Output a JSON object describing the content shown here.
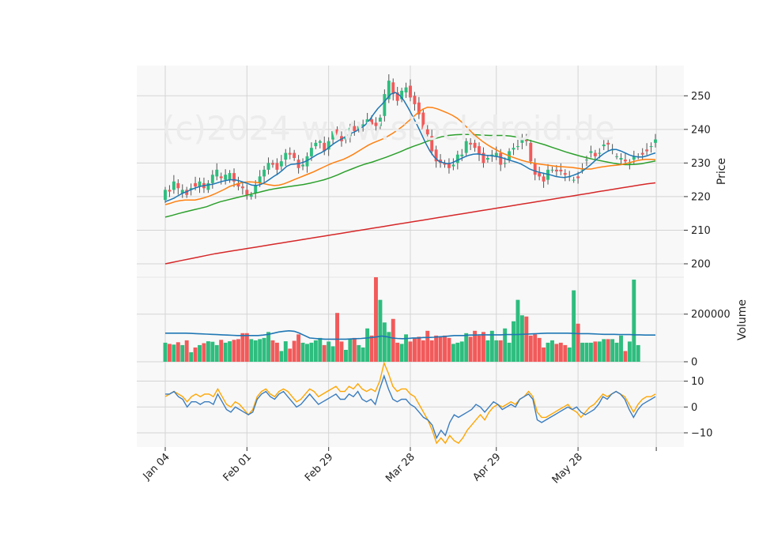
{
  "watermark": "(c)2024 www.stockdroid.de",
  "colors": {
    "up": "#2ebd7e",
    "down": "#f25a5a",
    "panel_bg": "#f8f8f8",
    "grid": "#d4d4d4",
    "ma_fast": "#1f77b4",
    "ma_mid": "#ff7f0e",
    "ma_slow": "#2ca02c",
    "ma_long": "#d62728",
    "vol_ma": "#1f77b4",
    "osc_a": "#3b7dbf",
    "osc_b": "#ffa500"
  },
  "chart_data": [
    {
      "type": "candlestick",
      "panel": "price",
      "ylabel": "Price",
      "ylim": [
        196,
        259
      ],
      "yticks": [
        200,
        210,
        220,
        230,
        240,
        250
      ],
      "x_tick_labels": [
        "Jan 04",
        "Feb 01",
        "Feb 29",
        "Mar 28",
        "Apr 29",
        "May 28"
      ],
      "x_tick_indices": [
        0,
        19,
        38,
        57,
        77,
        96
      ],
      "n_bars": 115,
      "close": [
        222.0,
        221.5,
        224.5,
        222.5,
        222.0,
        220.5,
        222.5,
        223.0,
        224.5,
        222.5,
        224.0,
        226.5,
        228.0,
        225.5,
        226.5,
        227.0,
        224.5,
        223.0,
        222.5,
        220.5,
        220.5,
        223.5,
        226.0,
        228.0,
        230.0,
        229.5,
        228.0,
        230.5,
        233.0,
        232.5,
        231.5,
        228.5,
        229.5,
        232.0,
        234.5,
        236.0,
        236.5,
        233.5,
        236.5,
        239.5,
        238.0,
        236.5,
        238.0,
        240.5,
        239.5,
        241.0,
        241.5,
        243.0,
        241.5,
        241.0,
        243.5,
        250.5,
        254.5,
        250.5,
        248.5,
        251.5,
        252.5,
        249.5,
        247.5,
        244.5,
        240.0,
        238.5,
        233.5,
        230.5,
        230.0,
        229.5,
        228.5,
        229.5,
        232.5,
        232.5,
        236.5,
        235.5,
        234.5,
        232.5,
        230.0,
        231.5,
        232.5,
        233.0,
        229.5,
        230.0,
        233.5,
        234.5,
        235.0,
        237.5,
        236.5,
        230.5,
        226.5,
        226.0,
        224.5,
        228.0,
        228.0,
        227.5,
        227.5,
        226.5,
        226.0,
        225.0,
        225.5,
        228.0,
        231.0,
        233.5,
        232.0,
        233.0,
        235.5,
        235.5,
        234.0,
        232.0,
        231.5,
        230.5,
        230.0,
        232.0,
        232.0,
        232.5,
        233.5,
        235.0,
        237.0
      ],
      "open": [
        219.0,
        222.0,
        222.0,
        224.0,
        221.0,
        222.0,
        222.0,
        224.0,
        223.0,
        224.0,
        222.0,
        224.0,
        226.0,
        226.0,
        225.0,
        225.0,
        227.0,
        224.0,
        223.0,
        222.0,
        220.0,
        221.0,
        224.0,
        226.0,
        228.0,
        230.0,
        230.0,
        229.0,
        231.0,
        233.0,
        233.0,
        231.0,
        229.0,
        229.0,
        232.0,
        235.0,
        236.0,
        236.0,
        234.0,
        237.0,
        240.0,
        238.0,
        237.0,
        238.0,
        241.0,
        240.0,
        241.0,
        242.0,
        243.0,
        242.0,
        241.0,
        244.0,
        249.0,
        254.0,
        251.0,
        249.0,
        251.0,
        253.0,
        250.0,
        248.0,
        245.0,
        240.0,
        238.0,
        234.0,
        231.0,
        230.0,
        230.0,
        229.0,
        230.0,
        232.0,
        233.0,
        236.0,
        236.0,
        235.0,
        233.0,
        231.0,
        232.0,
        232.0,
        233.0,
        230.0,
        231.0,
        234.0,
        235.0,
        236.0,
        237.0,
        236.0,
        230.0,
        227.0,
        226.0,
        225.0,
        228.0,
        228.0,
        228.0,
        227.0,
        226.0,
        225.0,
        226.0,
        228.0,
        231.0,
        233.0,
        233.0,
        233.0,
        235.0,
        236.0,
        234.0,
        232.0,
        231.0,
        231.0,
        230.0,
        231.0,
        232.0,
        233.0,
        234.0,
        235.0,
        236.0
      ],
      "ma_fast": [
        218.5,
        219.0,
        219.5,
        220.3,
        221.0,
        221.5,
        222.1,
        222.6,
        223.0,
        223.3,
        223.5,
        223.7,
        224.1,
        224.5,
        224.8,
        225.0,
        225.0,
        224.7,
        224.3,
        223.9,
        223.4,
        223.3,
        223.6,
        224.2,
        225.1,
        226.0,
        226.8,
        227.8,
        229.0,
        229.6,
        229.7,
        229.9,
        230.3,
        230.9,
        231.7,
        232.5,
        233.1,
        233.9,
        234.9,
        235.9,
        236.7,
        237.4,
        238.2,
        238.9,
        239.5,
        240.3,
        241.2,
        242.6,
        244.5,
        246.2,
        247.5,
        249.0,
        250.5,
        251.0,
        250.2,
        248.6,
        246.4,
        244.0,
        241.5,
        238.8,
        236.0,
        233.6,
        231.8,
        230.6,
        230.1,
        229.8,
        230.0,
        230.6,
        231.2,
        231.8,
        232.3,
        232.6,
        232.7,
        232.5,
        232.3,
        232.2,
        232.0,
        231.8,
        231.4,
        231.0,
        230.6,
        230.2,
        229.7,
        229.0,
        228.2,
        227.7,
        227.3,
        227.0,
        226.7,
        226.4,
        226.0,
        225.8,
        225.7,
        225.9,
        226.3,
        226.8,
        227.4,
        228.4,
        229.4,
        230.6,
        231.7,
        232.7,
        233.5,
        234.0,
        234.0,
        233.6,
        233.0,
        232.4,
        232.0,
        231.8,
        231.8,
        232.1,
        232.6,
        233.0
      ],
      "ma_mid": [
        217.6,
        218.0,
        218.5,
        218.8,
        219.0,
        219.0,
        219.0,
        219.3,
        219.7,
        220.2,
        220.8,
        221.5,
        222.2,
        223.0,
        223.5,
        224.0,
        224.3,
        224.4,
        224.3,
        224.1,
        223.8,
        223.5,
        223.3,
        223.4,
        223.8,
        224.4,
        225.0,
        225.6,
        226.2,
        226.8,
        227.4,
        228.1,
        228.8,
        229.5,
        230.1,
        230.6,
        231.1,
        231.8,
        232.6,
        233.5,
        234.4,
        235.3,
        236.0,
        236.6,
        237.2,
        238.0,
        238.9,
        239.9,
        241.0,
        242.3,
        243.6,
        244.9,
        246.0,
        246.6,
        246.5,
        246.1,
        245.5,
        244.9,
        244.2,
        243.3,
        242.0,
        240.5,
        239.0,
        237.7,
        236.5,
        235.5,
        234.6,
        233.8,
        233.0,
        232.4,
        231.8,
        231.3,
        230.8,
        230.4,
        230.1,
        229.8,
        229.6,
        229.4,
        229.2,
        229.0,
        228.9,
        228.8,
        228.7,
        228.5,
        228.3,
        228.2,
        228.2,
        228.5,
        228.8,
        229.0,
        229.2,
        229.3,
        229.5,
        229.8,
        230.2,
        230.6,
        230.9,
        231.1,
        231.1,
        231.0
      ],
      "ma_slow": [
        213.9,
        214.4,
        215.0,
        215.5,
        216.0,
        216.5,
        217.0,
        217.8,
        218.5,
        219.0,
        219.5,
        220.0,
        220.5,
        221.0,
        221.5,
        222.0,
        222.4,
        222.7,
        223.0,
        223.3,
        223.6,
        224.0,
        224.5,
        225.0,
        225.7,
        226.5,
        227.4,
        228.2,
        229.0,
        229.7,
        230.3,
        231.0,
        231.7,
        232.5,
        233.3,
        234.2,
        235.0,
        235.7,
        236.5,
        237.2,
        237.8,
        238.2,
        238.4,
        238.5,
        238.5,
        238.4,
        238.3,
        238.2,
        238.2,
        238.2,
        238.0,
        237.7,
        237.2,
        236.6,
        236.0,
        235.4,
        234.7,
        234.0,
        233.3,
        232.7,
        232.1,
        231.6,
        231.1,
        230.7,
        230.3,
        229.9,
        229.6,
        229.5,
        229.6,
        229.8,
        230.2,
        230.6
      ],
      "ma_slow_start": 0,
      "ma_long": [
        200.0,
        200.5,
        201.0,
        201.5,
        202.0,
        202.5,
        203.0,
        203.4,
        203.8,
        204.2,
        204.6,
        205.0,
        205.4,
        205.8,
        206.2,
        206.6,
        207.0,
        207.4,
        207.8,
        208.2,
        208.6,
        209.0,
        209.4,
        209.8,
        210.2,
        210.6,
        211.0,
        211.4,
        211.8,
        212.2,
        212.6,
        213.0,
        213.4,
        213.8,
        214.2,
        214.6,
        215.0,
        215.4,
        215.8,
        216.2,
        216.6,
        217.0,
        217.4,
        217.8,
        218.2,
        218.6,
        219.0,
        219.4,
        219.8,
        220.2,
        220.6,
        221.0,
        221.4,
        221.8,
        222.2,
        222.6,
        223.0,
        223.4,
        223.8,
        224.1
      ]
    },
    {
      "type": "bar",
      "panel": "volume",
      "ylabel": "Volume",
      "ylim": [
        0,
        355000
      ],
      "yticks": [
        0,
        200000
      ],
      "values": [
        80000,
        75000,
        72000,
        82000,
        70000,
        90000,
        40000,
        60000,
        70000,
        78000,
        86000,
        84000,
        70000,
        92000,
        80000,
        86000,
        92000,
        95000,
        120000,
        120000,
        95000,
        90000,
        95000,
        100000,
        125000,
        90000,
        80000,
        45000,
        86000,
        55000,
        88000,
        115000,
        80000,
        75000,
        80000,
        90000,
        100000,
        70000,
        85000,
        65000,
        205000,
        85000,
        50000,
        95000,
        100000,
        70000,
        60000,
        140000,
        110000,
        355000,
        260000,
        165000,
        125000,
        180000,
        80000,
        75000,
        115000,
        85000,
        100000,
        105000,
        90000,
        130000,
        90000,
        110000,
        105000,
        110000,
        100000,
        75000,
        80000,
        85000,
        120000,
        105000,
        130000,
        110000,
        125000,
        90000,
        130000,
        90000,
        90000,
        140000,
        80000,
        170000,
        260000,
        195000,
        190000,
        110000,
        115000,
        100000,
        60000,
        80000,
        90000,
        75000,
        80000,
        70000,
        60000,
        300000,
        160000,
        80000,
        80000,
        80000,
        85000,
        85000,
        95000,
        95000,
        95000,
        80000,
        110000,
        45000,
        85000,
        345000,
        70000
      ],
      "vol_ma": [
        120000,
        120000,
        120000,
        120000,
        120000,
        119000,
        118000,
        117000,
        116000,
        115000,
        114000,
        113000,
        112000,
        111000,
        110000,
        110000,
        110000,
        110000,
        110000,
        112000,
        115000,
        120000,
        125000,
        128000,
        130000,
        128000,
        120000,
        110000,
        100000,
        98000,
        96000,
        95000,
        95000,
        95000,
        95000,
        95000,
        96000,
        97000,
        98000,
        100000,
        102000,
        105000,
        108000,
        105000,
        100000,
        98000,
        97000,
        98000,
        100000,
        100000,
        102000,
        102000,
        103000,
        105000,
        106000,
        108000,
        110000,
        110000,
        110000,
        112000,
        112000,
        113000,
        113000,
        113000,
        113000,
        113000,
        114000,
        114000,
        114000,
        115000,
        116000,
        117000,
        118000,
        119000,
        120000,
        120000,
        120000,
        120000,
        120000,
        119000,
        118000,
        118000,
        118000,
        117000,
        116000,
        115000,
        115000,
        115000,
        114000,
        114000,
        114000,
        113000,
        113000,
        112000,
        112000,
        112000
      ]
    },
    {
      "type": "line",
      "panel": "oscillator",
      "ylim": [
        -15.5,
        17.5
      ],
      "yticks": [
        -10,
        0,
        10
      ],
      "series": [
        {
          "values": [
            5,
            5,
            6,
            4,
            3,
            0,
            2,
            2,
            1,
            2,
            2,
            1,
            5,
            2,
            -1,
            -2,
            0,
            -1,
            -2,
            -3,
            -2,
            3,
            5,
            6,
            4,
            3,
            5,
            6,
            4,
            2,
            0,
            1,
            3,
            5,
            3,
            1,
            2,
            3,
            4,
            5,
            3,
            3,
            5,
            4,
            6,
            3,
            2,
            3,
            1,
            7,
            12,
            7,
            3,
            2,
            3,
            3,
            1,
            0,
            -2,
            -4,
            -5,
            -7,
            -12,
            -9,
            -11,
            -6,
            -3,
            -4,
            -3,
            -2,
            -1,
            1,
            0,
            -2,
            0,
            2,
            1,
            -1,
            0,
            1,
            0,
            3,
            4,
            5,
            3,
            -5,
            -6,
            -5,
            -4,
            -3,
            -2,
            -1,
            0,
            -1,
            0,
            -2,
            -3,
            -2,
            -1,
            1,
            4,
            3,
            5,
            6,
            5,
            3,
            -1,
            -4,
            -1,
            1,
            2,
            3,
            4
          ]
        },
        {
          "values": [
            4,
            5,
            6,
            5,
            4,
            2,
            4,
            5,
            4,
            5,
            5,
            4,
            7,
            4,
            1,
            0,
            2,
            1,
            -1,
            -3,
            -1,
            4,
            6,
            7,
            5,
            4,
            6,
            7,
            6,
            4,
            2,
            3,
            5,
            7,
            6,
            4,
            5,
            6,
            7,
            8,
            6,
            6,
            8,
            7,
            9,
            7,
            6,
            7,
            6,
            10,
            17,
            13,
            8,
            6,
            7,
            7,
            5,
            4,
            1,
            -2,
            -5,
            -9,
            -14,
            -12,
            -14,
            -11,
            -13,
            -14,
            -12,
            -9,
            -7,
            -5,
            -3,
            -5,
            -2,
            0,
            1,
            0,
            1,
            2,
            1,
            3,
            4,
            6,
            4,
            -2,
            -4,
            -4,
            -3,
            -2,
            -1,
            0,
            1,
            -1,
            -2,
            -4,
            -2,
            0,
            1,
            3,
            5,
            4,
            5,
            6,
            5,
            4,
            1,
            -2,
            1,
            3,
            4,
            4,
            5
          ]
        }
      ]
    }
  ]
}
